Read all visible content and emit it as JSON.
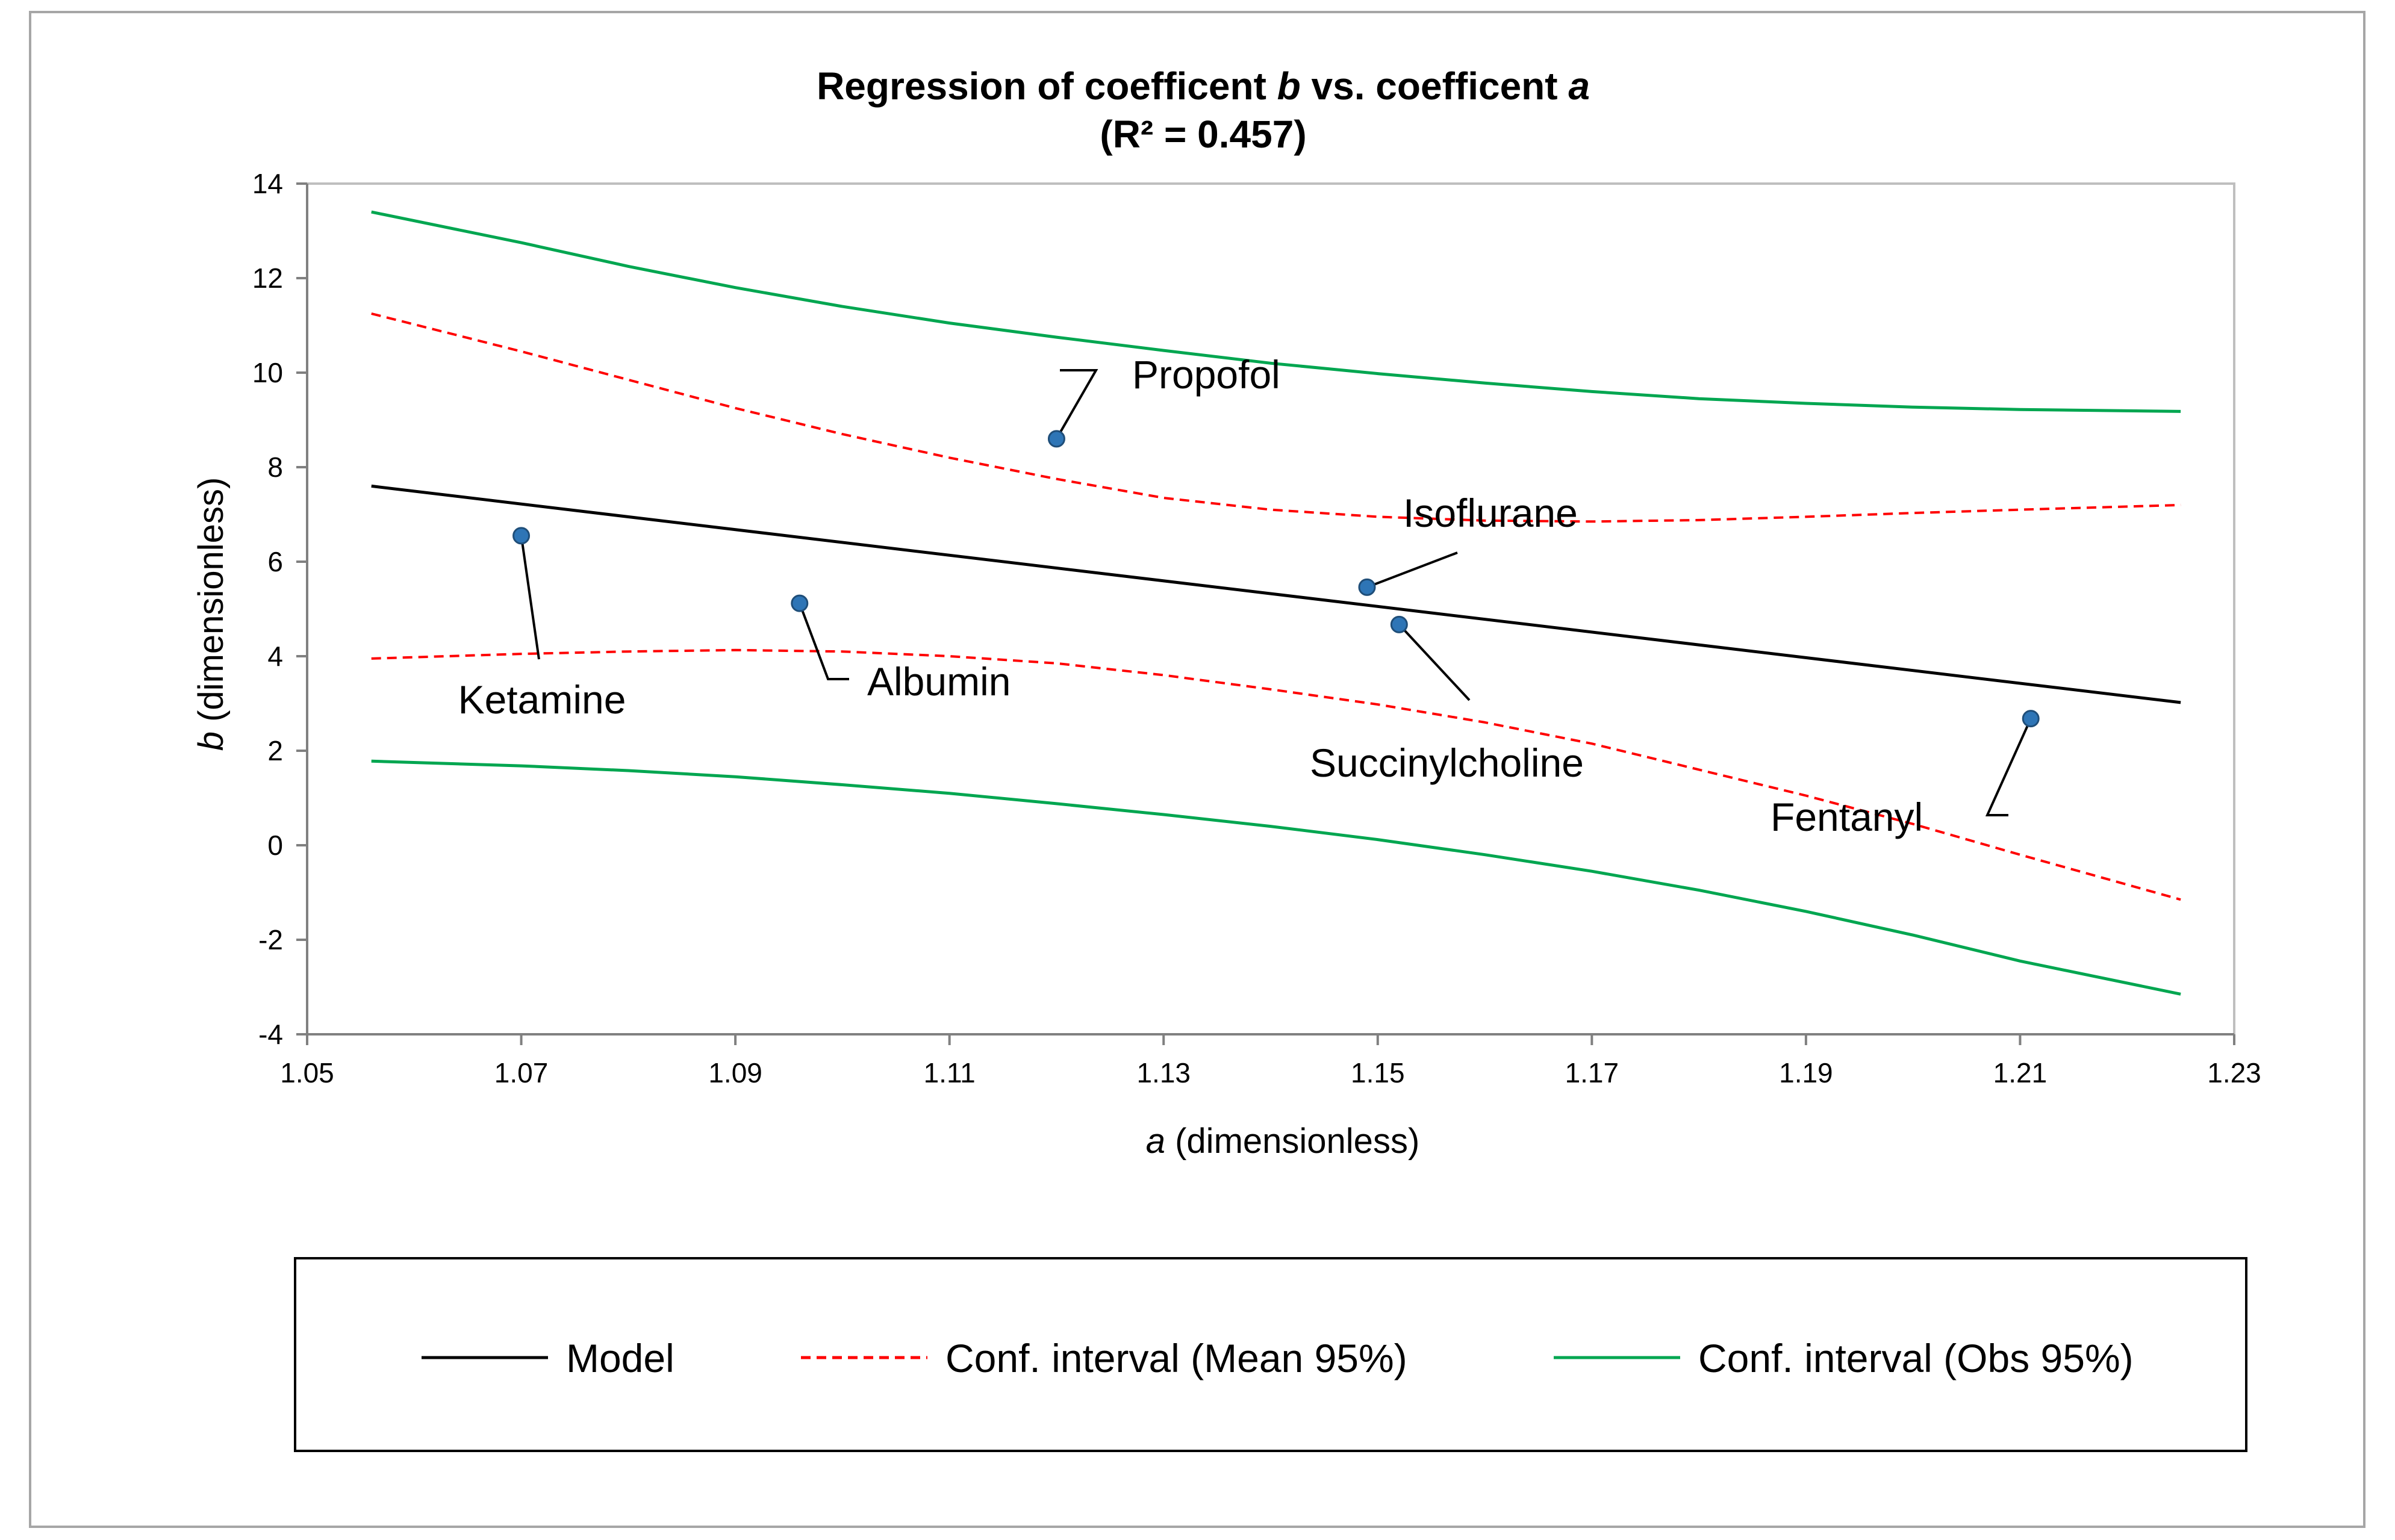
{
  "chart_data": {
    "type": "scatter",
    "title_line1_prefix": "Regression of coefficent ",
    "title_line1_b": "b",
    "title_line1_mid": " vs. coefficent ",
    "title_line1_a": "a",
    "title_line2": "(R² = 0.457)",
    "r_squared": 0.457,
    "xlabel_var": "a",
    "xlabel_unit": " (dimensionless)",
    "ylabel_var": "b",
    "ylabel_unit": " (dimensionless)",
    "xlim": [
      1.05,
      1.23
    ],
    "ylim": [
      -4,
      14
    ],
    "x_ticks": [
      "1.05",
      "1.07",
      "1.09",
      "1.11",
      "1.13",
      "1.15",
      "1.17",
      "1.19",
      "1.21",
      "1.23"
    ],
    "y_ticks": [
      "-4",
      "-2",
      "0",
      "2",
      "4",
      "6",
      "8",
      "10",
      "12",
      "14"
    ],
    "grid": false,
    "legend_position": "bottom",
    "points": [
      {
        "label": "Propofol",
        "x": 1.12,
        "y": 8.6
      },
      {
        "label": "Ketamine",
        "x": 1.07,
        "y": 6.55
      },
      {
        "label": "Albumin",
        "x": 1.096,
        "y": 5.12
      },
      {
        "label": "Isoflurane",
        "x": 1.149,
        "y": 5.46
      },
      {
        "label": "Succinylcholine",
        "x": 1.152,
        "y": 4.67
      },
      {
        "label": "Fentanyl",
        "x": 1.211,
        "y": 2.68
      }
    ],
    "series": [
      {
        "name": "Model",
        "color": "#000000",
        "style": "solid",
        "x": [
          1.056,
          1.225
        ],
        "y": [
          7.6,
          3.02
        ]
      },
      {
        "name": "Conf. interval (Mean 95%)",
        "color": "#ff0000",
        "style": "dashed",
        "x": [
          1.056,
          1.07,
          1.08,
          1.09,
          1.1,
          1.11,
          1.12,
          1.13,
          1.14,
          1.15,
          1.16,
          1.17,
          1.18,
          1.19,
          1.2,
          1.21,
          1.225
        ],
        "y_upper": [
          11.25,
          10.45,
          9.85,
          9.25,
          8.7,
          8.2,
          7.75,
          7.35,
          7.1,
          6.95,
          6.87,
          6.85,
          6.88,
          6.95,
          7.03,
          7.1,
          7.2
        ],
        "y_lower": [
          3.95,
          4.05,
          4.1,
          4.13,
          4.1,
          4.0,
          3.85,
          3.6,
          3.3,
          2.98,
          2.6,
          2.15,
          1.6,
          1.05,
          0.45,
          -0.2,
          -1.15
        ]
      },
      {
        "name": "Conf. interval (Obs 95%)",
        "color": "#00a650",
        "style": "solid",
        "x": [
          1.056,
          1.07,
          1.08,
          1.09,
          1.1,
          1.11,
          1.12,
          1.13,
          1.14,
          1.15,
          1.16,
          1.17,
          1.18,
          1.19,
          1.2,
          1.21,
          1.225
        ],
        "y_upper": [
          13.4,
          12.75,
          12.25,
          11.8,
          11.4,
          11.05,
          10.75,
          10.47,
          10.2,
          9.98,
          9.78,
          9.6,
          9.45,
          9.35,
          9.27,
          9.22,
          9.18
        ],
        "y_lower": [
          1.78,
          1.68,
          1.58,
          1.45,
          1.28,
          1.1,
          0.88,
          0.65,
          0.4,
          0.12,
          -0.2,
          -0.55,
          -0.95,
          -1.4,
          -1.9,
          -2.45,
          -3.15
        ]
      }
    ]
  },
  "legend": {
    "items": [
      {
        "label": "Model",
        "color": "#000000",
        "style": "solid"
      },
      {
        "label": "Conf. interval (Mean 95%)",
        "color": "#ff0000",
        "style": "dashed"
      },
      {
        "label": "Conf. interval (Obs 95%)",
        "color": "#00a650",
        "style": "solid"
      }
    ]
  },
  "colors": {
    "marker_fill": "#2e75b6",
    "marker_stroke": "#1f4e79",
    "axis": "#808080",
    "plot_border": "#bfbfbf"
  }
}
